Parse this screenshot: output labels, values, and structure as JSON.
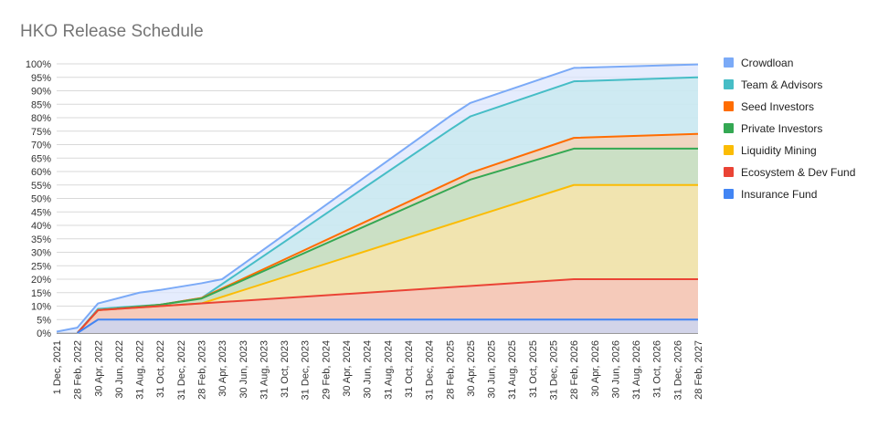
{
  "chart_data": {
    "type": "area",
    "title": "HKO Release Schedule",
    "xlabel": "",
    "ylabel": "",
    "stacked": false,
    "ylim": [
      0,
      100
    ],
    "y_ticks": [
      "0%",
      "5%",
      "10%",
      "15%",
      "20%",
      "25%",
      "30%",
      "35%",
      "40%",
      "45%",
      "50%",
      "55%",
      "60%",
      "65%",
      "70%",
      "75%",
      "80%",
      "85%",
      "90%",
      "95%",
      "100%"
    ],
    "categories": [
      "1 Dec, 2021",
      "28 Feb, 2022",
      "30 Apr, 2022",
      "30 Jun, 2022",
      "31 Aug, 2022",
      "31 Oct, 2022",
      "31 Dec, 2022",
      "28 Feb, 2023",
      "30 Apr, 2023",
      "30 Jun, 2023",
      "31 Aug, 2023",
      "31 Oct, 2023",
      "31 Dec, 2023",
      "29 Feb, 2024",
      "30 Apr, 2024",
      "30 Jun, 2024",
      "31 Aug, 2024",
      "31 Oct, 2024",
      "31 Dec, 2024",
      "28 Feb, 2025",
      "30 Apr, 2025",
      "30 Jun, 2025",
      "31 Aug, 2025",
      "31 Oct, 2025",
      "31 Dec, 2025",
      "28 Feb, 2026",
      "30 Apr, 2026",
      "30 Jun, 2026",
      "31 Aug, 2026",
      "31 Oct, 2026",
      "31 Dec, 2026",
      "28 Feb, 2027"
    ],
    "legend_position": "right",
    "grid": true,
    "series": [
      {
        "name": "Crowdloan",
        "color": "#7baaf7",
        "fill": "#dce6fc",
        "points": [
          [
            "1 Dec, 2021",
            0.5
          ],
          [
            "28 Feb, 2022",
            2
          ],
          [
            "30 Apr, 2022",
            11
          ],
          [
            "31 Aug, 2022",
            15
          ],
          [
            "31 Oct, 2022",
            16
          ],
          [
            "28 Feb, 2023",
            18.5
          ],
          [
            "30 Apr, 2023",
            20
          ],
          [
            "28 Feb, 2025",
            80.5
          ],
          [
            "30 Apr, 2025",
            85.5
          ],
          [
            "28 Feb, 2026",
            98.5
          ],
          [
            "28 Feb, 2027",
            99.8
          ]
        ]
      },
      {
        "name": "Team & Advisors",
        "color": "#46bdc6",
        "fill": "#c5eaed",
        "points": [
          [
            "28 Feb, 2022",
            0
          ],
          [
            "30 Apr, 2022",
            9
          ],
          [
            "31 Oct, 2022",
            10.5
          ],
          [
            "28 Feb, 2023",
            13
          ],
          [
            "28 Feb, 2025",
            75.5
          ],
          [
            "30 Apr, 2025",
            80.5
          ],
          [
            "28 Feb, 2026",
            93.5
          ],
          [
            "28 Feb, 2027",
            95
          ]
        ]
      },
      {
        "name": "Seed Investors",
        "color": "#ff6d01",
        "fill": "#f9cfb0",
        "points": [
          [
            "28 Feb, 2022",
            0
          ],
          [
            "30 Apr, 2022",
            8.5
          ],
          [
            "31 Oct, 2022",
            10.5
          ],
          [
            "28 Feb, 2023",
            13
          ],
          [
            "30 Apr, 2025",
            59.5
          ],
          [
            "28 Feb, 2026",
            72.5
          ],
          [
            "28 Feb, 2027",
            74
          ]
        ]
      },
      {
        "name": "Private Investors",
        "color": "#34a853",
        "fill": "#bfe3c6",
        "points": [
          [
            "28 Feb, 2022",
            0
          ],
          [
            "30 Apr, 2022",
            8.5
          ],
          [
            "31 Oct, 2022",
            10.5
          ],
          [
            "28 Feb, 2023",
            12.8
          ],
          [
            "30 Apr, 2025",
            57
          ],
          [
            "28 Feb, 2026",
            68.5
          ],
          [
            "28 Feb, 2027",
            68.5
          ]
        ]
      },
      {
        "name": "Liquidity Mining",
        "color": "#fbbc04",
        "fill": "#fde5a8",
        "points": [
          [
            "28 Feb, 2022",
            0
          ],
          [
            "30 Apr, 2022",
            8.5
          ],
          [
            "31 Oct, 2022",
            10
          ],
          [
            "28 Feb, 2023",
            11
          ],
          [
            "28 Feb, 2026",
            55
          ],
          [
            "28 Feb, 2027",
            55
          ]
        ]
      },
      {
        "name": "Ecosystem & Dev Fund",
        "color": "#ea4335",
        "fill": "#f6c2be",
        "points": [
          [
            "28 Feb, 2022",
            0
          ],
          [
            "30 Apr, 2022",
            8.5
          ],
          [
            "31 Oct, 2022",
            10
          ],
          [
            "28 Feb, 2026",
            20
          ],
          [
            "28 Feb, 2027",
            20
          ]
        ]
      },
      {
        "name": "Insurance Fund",
        "color": "#4285f4",
        "fill": "#c6d7f8",
        "points": [
          [
            "28 Feb, 2022",
            0
          ],
          [
            "30 Apr, 2022",
            5
          ],
          [
            "28 Feb, 2027",
            5
          ]
        ]
      }
    ]
  }
}
